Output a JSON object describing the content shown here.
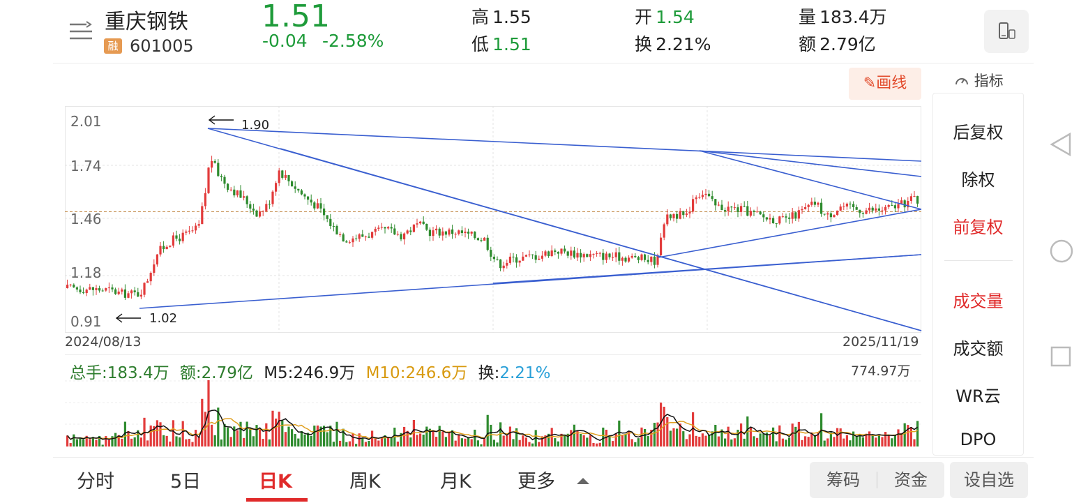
{
  "header": {
    "stock_name": "重庆钢铁",
    "margin_badge": "融",
    "stock_code": "601005",
    "price": "1.51",
    "change": "-0.04",
    "change_pct": "-2.58%",
    "high_label": "高",
    "high": "1.55",
    "low_label": "低",
    "low": "1.51",
    "open_label": "开",
    "open": "1.54",
    "turnover_label": "换",
    "turnover": "2.21%",
    "volume_label": "量",
    "volume": "183.4万",
    "amount_label": "额",
    "amount": "2.79亿"
  },
  "toolbar": {
    "draw_label": "画线",
    "indicator_label": "指标"
  },
  "kline": {
    "y_ticks": [
      "2.01",
      "1.74",
      "1.46",
      "1.18",
      "0.91"
    ],
    "start_date": "2024/08/13",
    "end_date": "2025/11/19",
    "annot_high": "1.90",
    "annot_low": "1.02",
    "ref_price": 1.51
  },
  "volume": {
    "total_label": "总手:183.4万",
    "amount_label": "额:2.79亿",
    "m5_label": "M5:246.9万",
    "m10_label": "M10:246.6万",
    "turnover_prefix": "换:",
    "turnover_value": "2.21%",
    "max_label": "774.97万"
  },
  "side_menu": {
    "items": [
      "后复权",
      "除权",
      "前复权",
      "成交量",
      "成交额",
      "WR云",
      "DPO"
    ]
  },
  "tabs": {
    "items": [
      "分时",
      "5日",
      "日K",
      "周K",
      "月K",
      "更多"
    ],
    "active": "日K"
  },
  "bottom_buttons": {
    "chips": "筹码",
    "funds": "资金",
    "watchlist": "设自选"
  },
  "colors": {
    "up": "#e23b3b",
    "down": "#2e8b2e",
    "green_text": "#1e9b3a",
    "trendline": "#3a5fd0",
    "m10": "#e0a020",
    "accent": "#e02a2a"
  }
}
